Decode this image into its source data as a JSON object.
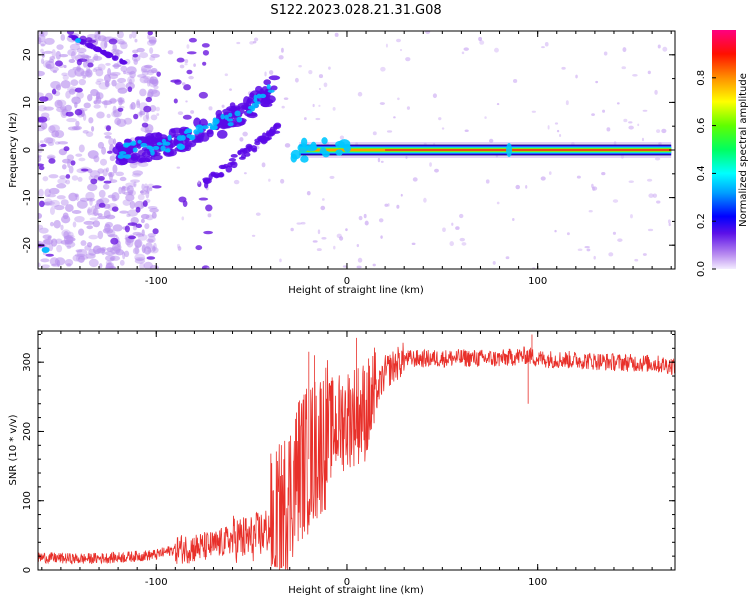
{
  "title": "S122.2023.028.21.31.G08",
  "chart_data": [
    {
      "type": "heatmap",
      "xlabel": "Height of straight line (km)",
      "ylabel": "Frequency (Hz)",
      "xlim": [
        -162,
        172
      ],
      "ylim": [
        -25,
        25
      ],
      "xticks": [
        -100,
        0,
        100
      ],
      "yticks": [
        -20,
        -10,
        0,
        10,
        20
      ],
      "colorbar": {
        "label": "Normalized spectral amplitude",
        "range": [
          0,
          1
        ],
        "ticks": [
          0.0,
          0.2,
          0.4,
          0.6,
          0.8
        ]
      },
      "features": {
        "dominant_tone": {
          "x_start": -25,
          "x_end": 170,
          "frequency": 0
        },
        "rising_arc": {
          "x_start": -120,
          "x_end": -38,
          "frequency_start": 0,
          "frequency_end": 13
        },
        "noise_region_x_end": -110
      }
    },
    {
      "type": "line",
      "xlabel": "Height of straight line (km)",
      "ylabel": "SNR (10 * v/v)",
      "xlim": [
        -162,
        172
      ],
      "ylim": [
        0,
        345
      ],
      "xticks": [
        -100,
        0,
        100
      ],
      "yticks": [
        0,
        100,
        200,
        300
      ],
      "series": [
        {
          "color": "#e8302a",
          "x": [
            -160,
            -140,
            -120,
            -100,
            -90,
            -80,
            -70,
            -60,
            -50,
            -40,
            -35,
            -30,
            -25,
            -20,
            -15,
            -10,
            -5,
            0,
            5,
            10,
            15,
            20,
            25,
            30,
            40,
            60,
            80,
            95,
            100,
            120,
            140,
            160,
            170
          ],
          "y": [
            18,
            16,
            18,
            22,
            30,
            32,
            35,
            45,
            45,
            60,
            75,
            110,
            150,
            160,
            180,
            200,
            210,
            220,
            225,
            230,
            250,
            285,
            295,
            305,
            305,
            306,
            305,
            310,
            305,
            303,
            300,
            298,
            295
          ]
        }
      ]
    }
  ]
}
